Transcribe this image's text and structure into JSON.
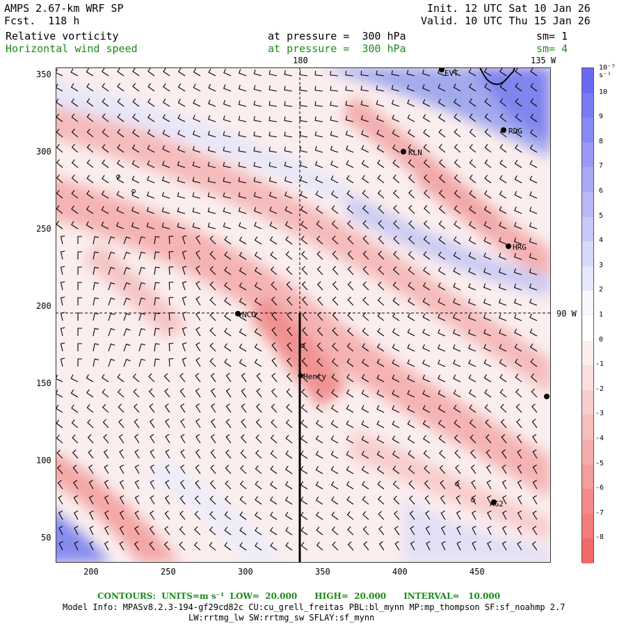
{
  "header": {
    "model": "AMPS 2.67-km WRF SP",
    "forecast": "Fcst.  118 h",
    "init": "Init. 12 UTC Sat 10 Jan 26",
    "valid": "Valid. 10 UTC Thu 15 Jan 26",
    "field1_name": "Relative vorticity",
    "field1_level": "at pressure =  300 hPa",
    "field1_sm": "sm= 1",
    "field2_name": "Horizontal wind speed",
    "field2_level": "at pressure =  300 hPa",
    "field2_sm": "sm= 4"
  },
  "map": {
    "lon_label_180": "180",
    "lon_label_135w": "135 W",
    "lon_label_90w": "90 W",
    "x_ticks": [
      "200",
      "250",
      "300",
      "350",
      "400",
      "450"
    ],
    "y_ticks": [
      "350",
      "300",
      "250",
      "200",
      "150",
      "100",
      "50"
    ],
    "stations": [
      {
        "name": "EVT"
      },
      {
        "name": "RDG"
      },
      {
        "name": "KLN"
      },
      {
        "name": "HRG"
      },
      {
        "name": "NCO"
      },
      {
        "name": "Henry"
      },
      {
        "name": "AG2"
      }
    ]
  },
  "colorbar": {
    "unit": "10⁻⁵ s⁻¹",
    "labels": [
      "10",
      "9",
      "8",
      "7",
      "6",
      "5",
      "4",
      "3",
      "2",
      "1",
      "0",
      "-1",
      "-2",
      "-3",
      "-4",
      "-5",
      "-6",
      "-7",
      "-8"
    ],
    "positive_color": "#6a6af0",
    "negative_color": "#f06a6a"
  },
  "footer": {
    "contours": "CONTOURS:  UNITS=m s⁻¹  LOW=  20.000      HIGH=  20.000      INTERVAL=   10.000",
    "model_info": "Model Info: MPASv8.2.3-194-gf29cd82c CU:cu_grell_freitas PBL:bl_mynn MP:mp_thompson SF:sf_noahmp 2.7",
    "model_info2": "LW:rrtmg_lw SW:rrtmg_sw SFLAY:sf_mynn"
  }
}
